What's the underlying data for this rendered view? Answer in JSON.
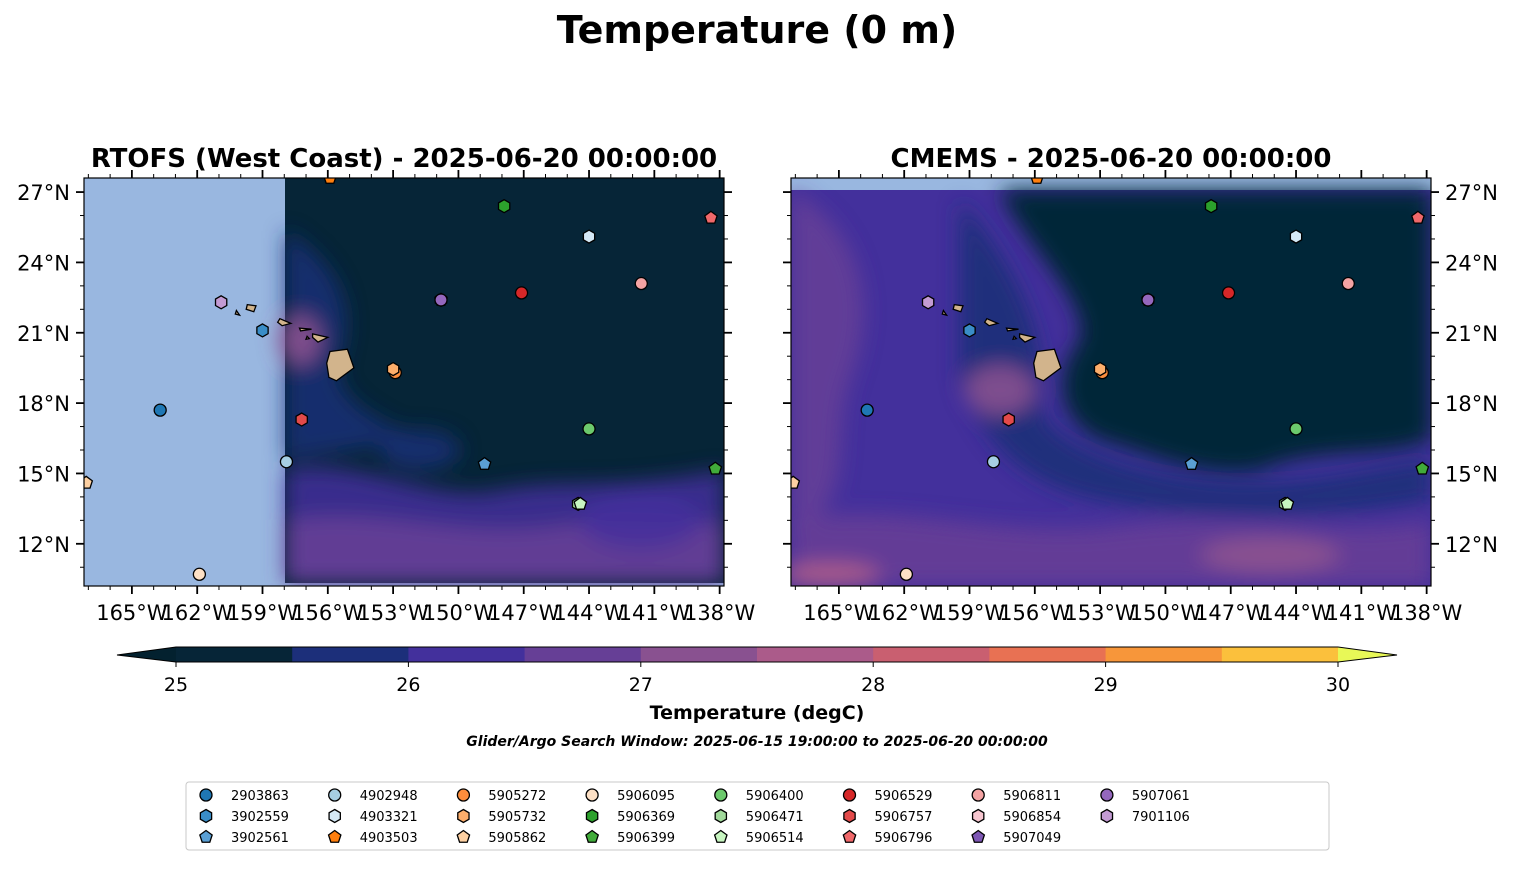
{
  "figure": {
    "suptitle": "Temperature (0 m)",
    "search_window": "Glider/Argo Search Window: 2025-06-15 19:00:00 to 2025-06-20 00:00:00"
  },
  "chart_data": {
    "type": "scatter",
    "panels": [
      {
        "title": "RTOFS (West Coast) - 2025-06-20 00:00:00",
        "model_lon_range": [
          -158,
          -138
        ],
        "lat_tick_side": "left"
      },
      {
        "title": "CMEMS - 2025-06-20 00:00:00",
        "model_lon_range": [
          -167,
          -138
        ],
        "lat_tick_side": "right"
      }
    ],
    "xlim": [
      -167.2,
      -137.8
    ],
    "ylim": [
      10.2,
      27.6
    ],
    "x_ticks": [
      -165,
      -162,
      -159,
      -156,
      -153,
      -150,
      -147,
      -144,
      -141,
      -138
    ],
    "x_tick_labels": [
      "165°W",
      "162°W",
      "159°W",
      "156°W",
      "153°W",
      "150°W",
      "147°W",
      "144°W",
      "141°W",
      "138°W"
    ],
    "y_ticks": [
      12,
      15,
      18,
      21,
      24,
      27
    ],
    "y_tick_labels": [
      "12°N",
      "15°N",
      "18°N",
      "21°N",
      "24°N",
      "27°N"
    ],
    "colorbar": {
      "label": "Temperature (degC)",
      "min": 25,
      "max": 30,
      "step": 0.5,
      "ticks": [
        25,
        26,
        27,
        28,
        29,
        30
      ],
      "tick_labels": [
        "25",
        "26",
        "27",
        "28",
        "29",
        "30"
      ],
      "extend": "both",
      "colors": [
        "#03212f",
        "#062537",
        "#1c2f7a",
        "#43309c",
        "#663f96",
        "#895190",
        "#ab5b8a",
        "#c95f70",
        "#e87153",
        "#f7963a",
        "#fbc03c",
        "#e8f857"
      ]
    },
    "colors": {
      "land": "#d2b48c",
      "nodata": "#99b7e0"
    },
    "series": [
      {
        "name": "2903863",
        "marker": "circle",
        "color": "#1f77b4",
        "x": -163.7,
        "y": 17.7
      },
      {
        "name": "3902559",
        "marker": "hexagon",
        "color": "#3a8dc7",
        "x": -159.0,
        "y": 21.1
      },
      {
        "name": "3902561",
        "marker": "pentagon",
        "color": "#5a9fd4",
        "x": -148.8,
        "y": 15.4
      },
      {
        "name": "4902948",
        "marker": "circle",
        "color": "#a6cee3",
        "x": -157.9,
        "y": 15.5
      },
      {
        "name": "4903321",
        "marker": "hexagon",
        "color": "#d4e8f5",
        "x": -144.0,
        "y": 25.1
      },
      {
        "name": "4903503",
        "marker": "pentagon",
        "color": "#ff7f0e",
        "x": -155.9,
        "y": 27.6
      },
      {
        "name": "5905272",
        "marker": "circle",
        "color": "#fd8d3c",
        "x": -152.9,
        "y": 19.3
      },
      {
        "name": "5905732",
        "marker": "hexagon",
        "color": "#fdae6b",
        "x": -153.0,
        "y": 19.45
      },
      {
        "name": "5905862",
        "marker": "pentagon",
        "color": "#fdd0a2",
        "x": -167.1,
        "y": 14.6
      },
      {
        "name": "5906095",
        "marker": "circle",
        "color": "#fde0c5",
        "x": -161.9,
        "y": 10.7
      },
      {
        "name": "5906369",
        "marker": "hexagon",
        "color": "#2ca02c",
        "x": -147.9,
        "y": 26.4
      },
      {
        "name": "5906399",
        "marker": "pentagon",
        "color": "#41ab3a",
        "x": -138.2,
        "y": 15.2
      },
      {
        "name": "5906400",
        "marker": "circle",
        "color": "#6cc96c",
        "x": -144.0,
        "y": 16.9
      },
      {
        "name": "5906471",
        "marker": "hexagon",
        "color": "#a1d99b",
        "x": -144.5,
        "y": 13.7
      },
      {
        "name": "5906514",
        "marker": "pentagon",
        "color": "#c7f5c0",
        "x": -144.4,
        "y": 13.7
      },
      {
        "name": "5906529",
        "marker": "circle",
        "color": "#d62728",
        "x": -147.1,
        "y": 22.7
      },
      {
        "name": "5906757",
        "marker": "hexagon",
        "color": "#e34a4a",
        "x": -157.2,
        "y": 17.3
      },
      {
        "name": "5906796",
        "marker": "pentagon",
        "color": "#f0686a",
        "x": -138.4,
        "y": 25.9
      },
      {
        "name": "5906811",
        "marker": "circle",
        "color": "#f4a3a3",
        "x": -141.6,
        "y": 23.1
      },
      {
        "name": "5906854",
        "marker": "hexagon",
        "color": "#f7c6d0",
        "x": -150.8,
        "y": 22.4
      },
      {
        "name": "5907049",
        "marker": "pentagon",
        "color": "#7e57b4",
        "x": -150.8,
        "y": 22.4
      },
      {
        "name": "5907061",
        "marker": "circle",
        "color": "#9467bd",
        "x": -150.8,
        "y": 22.4
      },
      {
        "name": "7901106",
        "marker": "hexagon",
        "color": "#c39bd3",
        "x": -160.9,
        "y": 22.3
      }
    ],
    "islands": [
      {
        "name": "Hawaii",
        "points": [
          [
            -155.9,
            20.2
          ],
          [
            -155.1,
            20.3
          ],
          [
            -154.8,
            19.5
          ],
          [
            -155.6,
            18.95
          ],
          [
            -155.95,
            19.1
          ],
          [
            -156.05,
            19.7
          ]
        ]
      },
      {
        "name": "Maui",
        "points": [
          [
            -156.7,
            20.95
          ],
          [
            -156.0,
            20.8
          ],
          [
            -156.45,
            20.6
          ],
          [
            -156.7,
            20.8
          ]
        ]
      },
      {
        "name": "Molokai",
        "points": [
          [
            -157.3,
            21.2
          ],
          [
            -156.75,
            21.15
          ],
          [
            -157.25,
            21.08
          ]
        ]
      },
      {
        "name": "Lanai",
        "points": [
          [
            -156.95,
            20.85
          ],
          [
            -156.85,
            20.75
          ],
          [
            -157.0,
            20.72
          ]
        ]
      },
      {
        "name": "Oahu",
        "points": [
          [
            -158.2,
            21.6
          ],
          [
            -157.7,
            21.4
          ],
          [
            -158.1,
            21.3
          ],
          [
            -158.3,
            21.45
          ]
        ]
      },
      {
        "name": "Kauai",
        "points": [
          [
            -159.7,
            22.2
          ],
          [
            -159.3,
            22.15
          ],
          [
            -159.4,
            21.9
          ],
          [
            -159.75,
            22.0
          ]
        ]
      },
      {
        "name": "Niihau",
        "points": [
          [
            -160.2,
            21.95
          ],
          [
            -160.05,
            21.75
          ],
          [
            -160.25,
            21.8
          ]
        ]
      }
    ]
  }
}
